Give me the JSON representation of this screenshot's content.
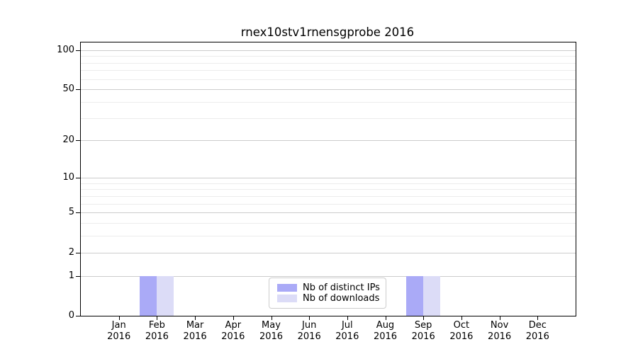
{
  "chart_data": {
    "type": "bar",
    "title": "rnex10stv1rnensgprobe 2016",
    "categories": [
      "Jan",
      "Feb",
      "Mar",
      "Apr",
      "May",
      "Jun",
      "Jul",
      "Aug",
      "Sep",
      "Oct",
      "Nov",
      "Dec"
    ],
    "x_year": "2016",
    "series": [
      {
        "name": "Nb of distinct IPs",
        "color": "#aaaaf7",
        "values": [
          0,
          1,
          0,
          0,
          0,
          0,
          0,
          0,
          1,
          0,
          0,
          0
        ]
      },
      {
        "name": "Nb of downloads",
        "color": "#dcdcf7",
        "values": [
          0,
          1,
          0,
          0,
          0,
          0,
          0,
          0,
          1,
          0,
          0,
          0
        ]
      }
    ],
    "yscale": "log1p",
    "ylim": [
      0,
      114
    ],
    "yticks_major": [
      0,
      1,
      2,
      5,
      10,
      20,
      50,
      100
    ],
    "yticks_minor": [
      3,
      4,
      6,
      7,
      8,
      9,
      30,
      40,
      60,
      70,
      80,
      90
    ],
    "grid": "horizontal major and minor",
    "legend_position": "lower center",
    "colors": {
      "major_grid": "#cccccc",
      "minor_grid": "#ececec",
      "spine": "#000000",
      "background": "#ffffff"
    }
  }
}
